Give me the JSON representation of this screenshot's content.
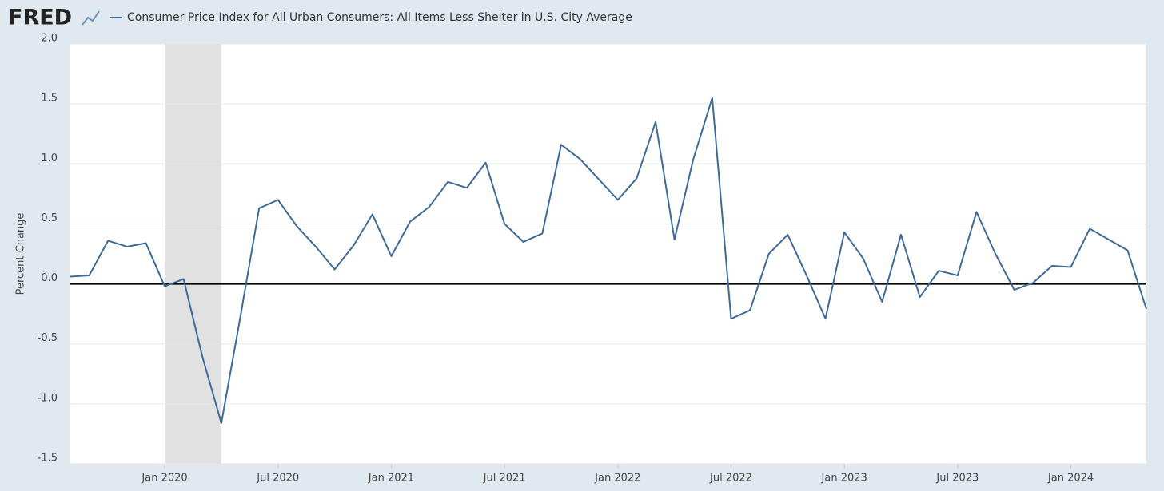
{
  "brand": "FRED",
  "chart_data": {
    "type": "line",
    "y_label": "Percent Change",
    "categories": [
      null,
      null,
      null,
      null,
      null,
      "Jan 2020",
      null,
      null,
      null,
      null,
      null,
      "Jul 2020",
      null,
      null,
      null,
      null,
      null,
      "Jan 2021",
      null,
      null,
      null,
      null,
      null,
      "Jul 2021",
      null,
      null,
      null,
      null,
      null,
      "Jan 2022",
      null,
      null,
      null,
      null,
      null,
      "Jul 2022",
      null,
      null,
      null,
      null,
      null,
      "Jan 2023",
      null,
      null,
      null,
      null,
      null,
      "Jul 2023",
      null,
      null,
      null,
      null,
      null,
      "Jan 2024",
      null,
      null,
      null,
      null
    ],
    "series": [
      {
        "name": "Consumer Price Index for All Urban Consumers: All Items Less Shelter in U.S. City Average",
        "color": "#3d6a99",
        "values": [
          0.06,
          0.07,
          0.36,
          0.31,
          0.34,
          -0.02,
          0.04,
          -0.61,
          -1.16,
          -0.28,
          0.63,
          0.7,
          0.48,
          0.31,
          0.12,
          0.32,
          0.58,
          0.23,
          0.52,
          0.64,
          0.85,
          0.8,
          1.01,
          0.5,
          0.35,
          0.42,
          1.16,
          1.04,
          0.87,
          0.7,
          0.88,
          1.35,
          0.37,
          1.04,
          1.55,
          -0.29,
          -0.22,
          0.25,
          0.41,
          0.07,
          -0.29,
          0.43,
          0.21,
          -0.15,
          0.41,
          -0.11,
          0.11,
          0.07,
          0.6,
          0.25,
          -0.05,
          0.01,
          0.15,
          0.14,
          0.46,
          0.37,
          0.28,
          -0.21
        ]
      }
    ],
    "ylim": [
      -1.5,
      2
    ],
    "yticks": [
      -1.5,
      {
        "value": -1,
        "label": "-1.0"
      },
      -0.5,
      {
        "value": 0,
        "label": "0.0"
      },
      0.5,
      {
        "value": 1,
        "label": "1.0"
      },
      1.5,
      {
        "value": 2,
        "label": "2.0"
      }
    ],
    "grid": true,
    "zero_line": true,
    "recession_bands": [
      [
        6,
        8
      ]
    ]
  }
}
